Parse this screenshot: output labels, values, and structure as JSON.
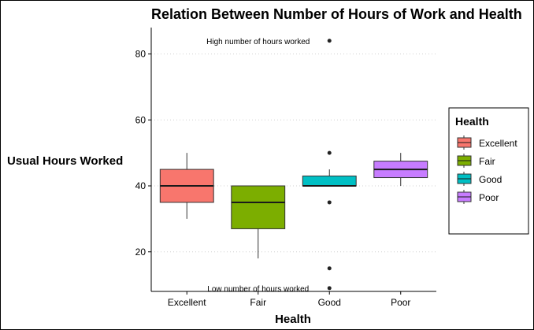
{
  "chart_data": {
    "type": "box",
    "title": "Relation Between Number of Hours of Work and Health",
    "xlabel": "Health",
    "ylabel": "Usual Hours Worked",
    "categories": [
      "Excellent",
      "Fair",
      "Good",
      "Poor"
    ],
    "ylim": [
      8,
      88
    ],
    "yticks": [
      20,
      40,
      60,
      80
    ],
    "grid": "horizontal dotted",
    "boxes": [
      {
        "category": "Excellent",
        "whisker_low": 30,
        "q1": 35,
        "median": 40,
        "q3": 45,
        "whisker_high": 50,
        "outliers": []
      },
      {
        "category": "Fair",
        "whisker_low": 18,
        "q1": 27,
        "median": 35,
        "q3": 40,
        "whisker_high": 40,
        "outliers": []
      },
      {
        "category": "Good",
        "whisker_low": 40,
        "q1": 40,
        "median": 40,
        "q3": 43,
        "whisker_high": 45,
        "outliers": [
          84,
          50,
          35,
          15,
          9
        ]
      },
      {
        "category": "Poor",
        "whisker_low": 40,
        "q1": 42.5,
        "median": 45,
        "q3": 47.5,
        "whisker_high": 50,
        "outliers": []
      }
    ],
    "colors": {
      "Excellent": "#F8766D",
      "Fair": "#7CAE00",
      "Good": "#00BFC4",
      "Poor": "#C77CFF"
    },
    "annotations": [
      {
        "text": "High number of hours worked",
        "x": "Fair",
        "y": 84
      },
      {
        "text": "Low number of hours worked",
        "x": "Fair",
        "y": 9
      }
    ],
    "legend": {
      "title": "Health",
      "position": "right",
      "entries": [
        "Excellent",
        "Fair",
        "Good",
        "Poor"
      ]
    }
  }
}
